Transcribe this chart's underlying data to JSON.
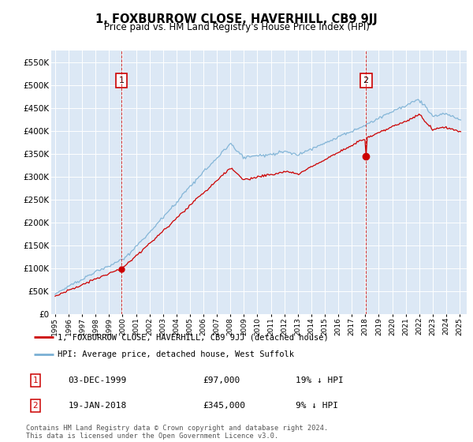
{
  "title": "1, FOXBURROW CLOSE, HAVERHILL, CB9 9JJ",
  "subtitle": "Price paid vs. HM Land Registry's House Price Index (HPI)",
  "legend_line1": "1, FOXBURROW CLOSE, HAVERHILL, CB9 9JJ (detached house)",
  "legend_line2": "HPI: Average price, detached house, West Suffolk",
  "annotation1_label": "1",
  "annotation1_date": "03-DEC-1999",
  "annotation1_price": "£97,000",
  "annotation1_hpi": "19% ↓ HPI",
  "annotation2_label": "2",
  "annotation2_date": "19-JAN-2018",
  "annotation2_price": "£345,000",
  "annotation2_hpi": "9% ↓ HPI",
  "footer": "Contains HM Land Registry data © Crown copyright and database right 2024.\nThis data is licensed under the Open Government Licence v3.0.",
  "hpi_color": "#7ab0d4",
  "price_color": "#cc0000",
  "annotation_color": "#cc0000",
  "plot_bg_color": "#dce8f5",
  "ylim": [
    0,
    575000
  ],
  "yticks": [
    0,
    50000,
    100000,
    150000,
    200000,
    250000,
    300000,
    350000,
    400000,
    450000,
    500000,
    550000
  ],
  "sale1_x": 1999.92,
  "sale1_y": 97000,
  "sale2_x": 2018.05,
  "sale2_y": 345000,
  "xlim_left": 1994.7,
  "xlim_right": 2025.5
}
